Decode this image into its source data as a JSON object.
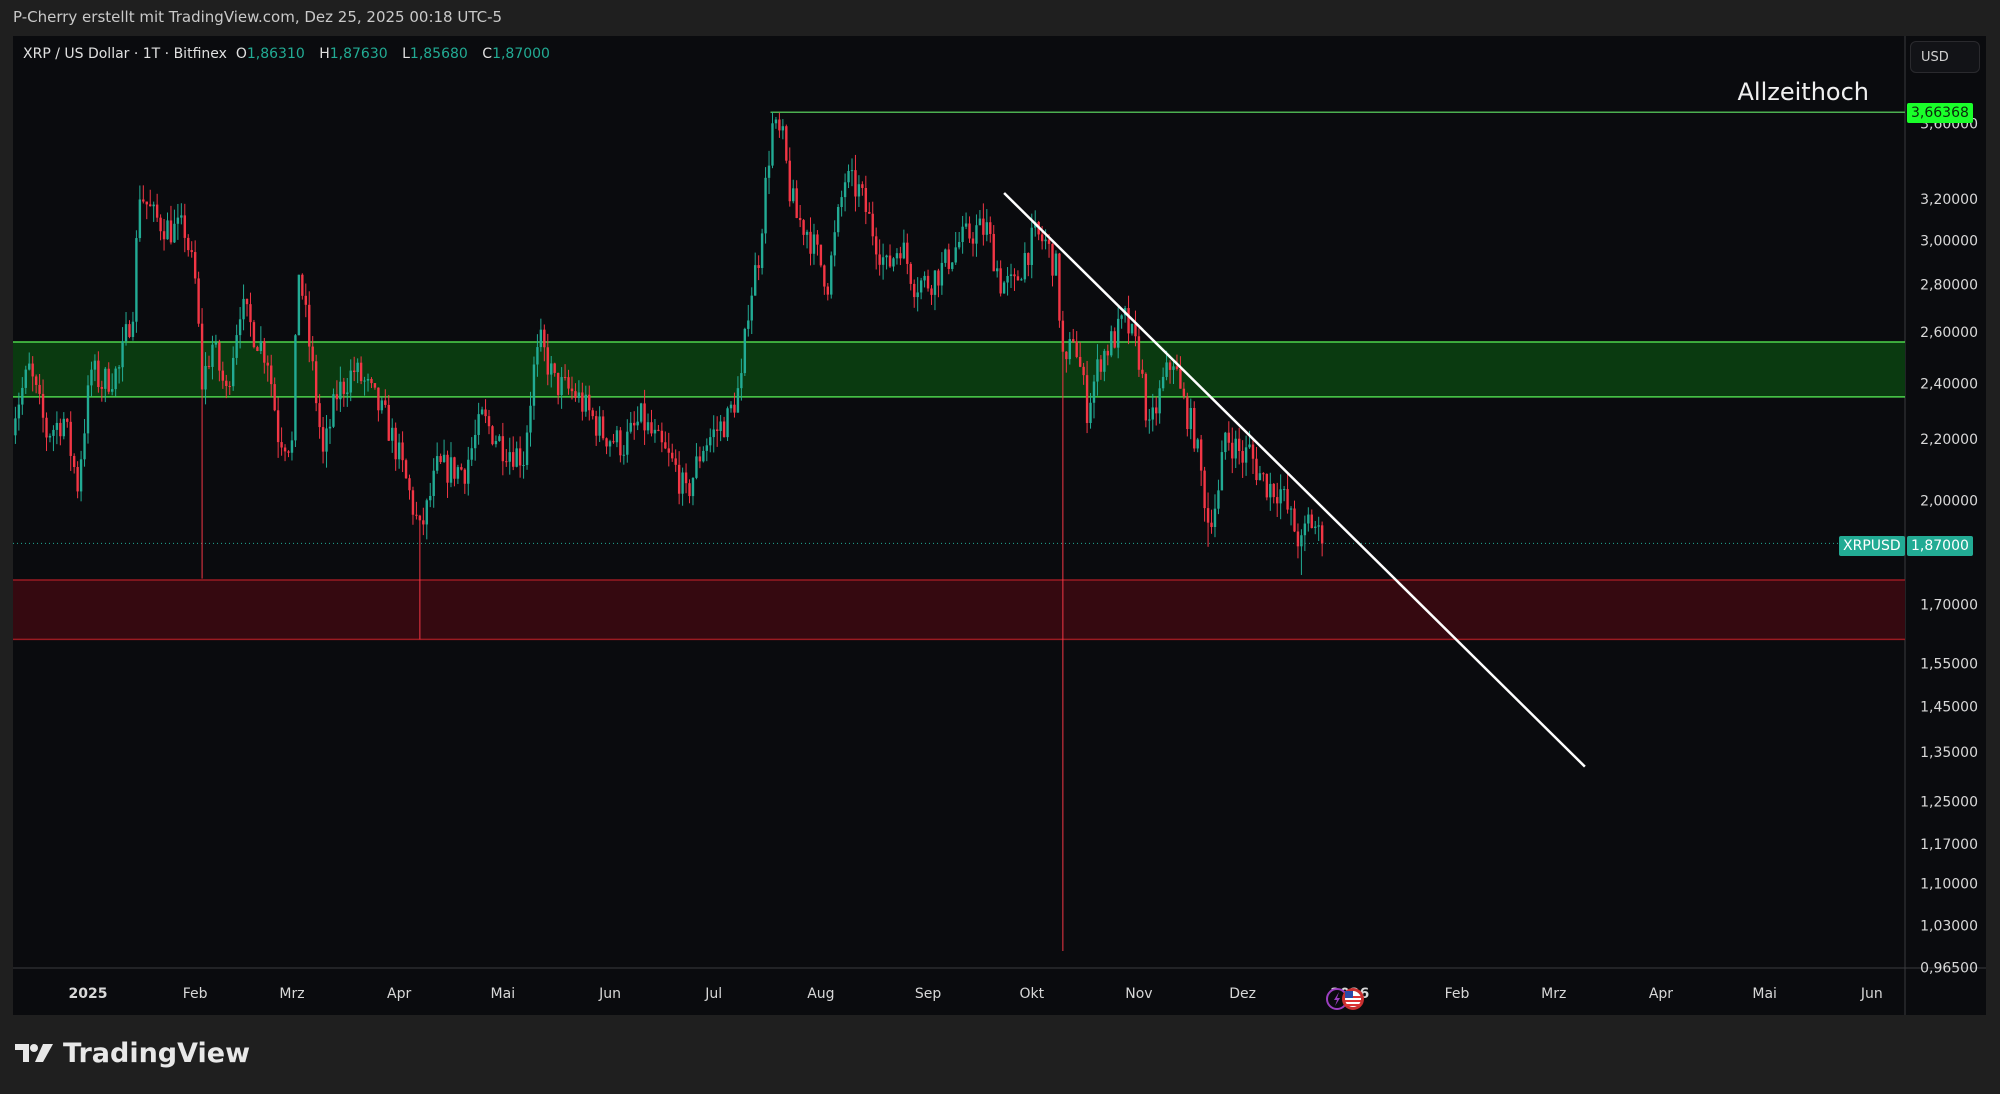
{
  "header": {
    "text": "P-Cherry erstellt mit TradingView.com, Dez 25, 2025 00:18 UTC-5"
  },
  "legend": {
    "symbol": "XRP / US Dollar · 1T · Bitfinex",
    "o_label": "O",
    "o": "1,86310",
    "h_label": "H",
    "h": "1,87630",
    "l_label": "L",
    "l": "1,85680",
    "c_label": "C",
    "c": "1,87000"
  },
  "currency_button": "USD",
  "annotations": {
    "ath_text": "Allzeithoch",
    "ath_price": "3,66368",
    "symbol_tag": "XRPUSD",
    "last_price": "1,87000"
  },
  "logo": {
    "text": "TradingView"
  },
  "icons": [
    "tradingview-logo-icon",
    "lightning-event-icon",
    "us-flag-event-icon"
  ],
  "colors": {
    "up": "#22ab94",
    "down": "#f23645",
    "support_zone": "#0a3a10",
    "support_border": "#4cd44c",
    "demand_zone": "#350910",
    "demand_border": "#9a1b22",
    "ath_line": "#4caf50",
    "trendline": "#ffffff",
    "background": "#0a0b0e"
  },
  "chart_data": {
    "type": "candlestick",
    "interval": "1T",
    "y_scale": "log",
    "ylim": [
      0.965,
      3.75
    ],
    "xlim": [
      "2024-12-10",
      "2026-06-15"
    ],
    "grid": false,
    "x_ticks": [
      {
        "date": "2025-01-01",
        "label": "2025",
        "bold": true
      },
      {
        "date": "2025-02-01",
        "label": "Feb"
      },
      {
        "date": "2025-03-01",
        "label": "Mrz"
      },
      {
        "date": "2025-04-01",
        "label": "Apr"
      },
      {
        "date": "2025-05-01",
        "label": "Mai"
      },
      {
        "date": "2025-06-01",
        "label": "Jun"
      },
      {
        "date": "2025-07-01",
        "label": "Jul"
      },
      {
        "date": "2025-08-01",
        "label": "Aug"
      },
      {
        "date": "2025-09-01",
        "label": "Sep"
      },
      {
        "date": "2025-10-01",
        "label": "Okt"
      },
      {
        "date": "2025-11-01",
        "label": "Nov"
      },
      {
        "date": "2025-12-01",
        "label": "Dez"
      },
      {
        "date": "2026-01-01",
        "label": "2026",
        "bold": true
      },
      {
        "date": "2026-02-01",
        "label": "Feb"
      },
      {
        "date": "2026-03-01",
        "label": "Mrz"
      },
      {
        "date": "2026-04-01",
        "label": "Apr"
      },
      {
        "date": "2026-05-01",
        "label": "Mai"
      },
      {
        "date": "2026-06-01",
        "label": "Jun"
      }
    ],
    "y_ticks": [
      "3,60000",
      "3,20000",
      "3,00000",
      "2,80000",
      "2,60000",
      "2,40000",
      "2,20000",
      "2,00000",
      "1,70000",
      "1,55000",
      "1,45000",
      "1,35000",
      "1,25000",
      "1,17000",
      "1,10000",
      "1,03000",
      "0,96500"
    ],
    "close_path": [
      [
        "2024-12-10",
        2.27
      ],
      [
        "2024-12-15",
        2.45
      ],
      [
        "2024-12-20",
        2.22
      ],
      [
        "2024-12-25",
        2.27
      ],
      [
        "2024-12-29",
        2.05
      ],
      [
        "2025-01-02",
        2.45
      ],
      [
        "2025-01-05",
        2.4
      ],
      [
        "2025-01-10",
        2.45
      ],
      [
        "2025-01-14",
        2.71
      ],
      [
        "2025-01-16",
        3.24
      ],
      [
        "2025-01-20",
        3.11
      ],
      [
        "2025-01-25",
        3.05
      ],
      [
        "2025-01-29",
        3.05
      ],
      [
        "2025-02-01",
        2.81
      ],
      [
        "2025-02-03",
        2.4
      ],
      [
        "2025-02-06",
        2.55
      ],
      [
        "2025-02-10",
        2.36
      ],
      [
        "2025-02-14",
        2.71
      ],
      [
        "2025-02-18",
        2.6
      ],
      [
        "2025-02-22",
        2.5
      ],
      [
        "2025-02-25",
        2.22
      ],
      [
        "2025-03-01",
        2.18
      ],
      [
        "2025-03-03",
        2.87
      ],
      [
        "2025-03-06",
        2.55
      ],
      [
        "2025-03-10",
        2.14
      ],
      [
        "2025-03-14",
        2.36
      ],
      [
        "2025-03-19",
        2.45
      ],
      [
        "2025-03-22",
        2.4
      ],
      [
        "2025-03-28",
        2.27
      ],
      [
        "2025-04-01",
        2.14
      ],
      [
        "2025-04-07",
        1.9
      ],
      [
        "2025-04-09",
        1.97
      ],
      [
        "2025-04-12",
        2.1
      ],
      [
        "2025-04-20",
        2.1
      ],
      [
        "2025-04-25",
        2.27
      ],
      [
        "2025-05-01",
        2.18
      ],
      [
        "2025-05-07",
        2.14
      ],
      [
        "2025-05-10",
        2.45
      ],
      [
        "2025-05-12",
        2.55
      ],
      [
        "2025-05-16",
        2.4
      ],
      [
        "2025-05-22",
        2.36
      ],
      [
        "2025-05-30",
        2.22
      ],
      [
        "2025-06-05",
        2.18
      ],
      [
        "2025-06-10",
        2.27
      ],
      [
        "2025-06-15",
        2.18
      ],
      [
        "2025-06-20",
        2.1
      ],
      [
        "2025-06-23",
        2.01
      ],
      [
        "2025-06-28",
        2.18
      ],
      [
        "2025-07-01",
        2.22
      ],
      [
        "2025-07-05",
        2.27
      ],
      [
        "2025-07-09",
        2.4
      ],
      [
        "2025-07-11",
        2.71
      ],
      [
        "2025-07-14",
        2.93
      ],
      [
        "2025-07-17",
        3.43
      ],
      [
        "2025-07-18",
        3.58
      ],
      [
        "2025-07-21",
        3.5
      ],
      [
        "2025-07-23",
        3.24
      ],
      [
        "2025-07-25",
        3.11
      ],
      [
        "2025-07-28",
        3.05
      ],
      [
        "2025-07-31",
        2.93
      ],
      [
        "2025-08-03",
        2.81
      ],
      [
        "2025-08-08",
        3.3
      ],
      [
        "2025-08-12",
        3.24
      ],
      [
        "2025-08-16",
        3.05
      ],
      [
        "2025-08-20",
        2.87
      ],
      [
        "2025-08-24",
        2.99
      ],
      [
        "2025-08-28",
        2.81
      ],
      [
        "2025-09-01",
        2.81
      ],
      [
        "2025-09-05",
        2.87
      ],
      [
        "2025-09-10",
        2.99
      ],
      [
        "2025-09-15",
        3.05
      ],
      [
        "2025-09-18",
        3.05
      ],
      [
        "2025-09-22",
        2.81
      ],
      [
        "2025-09-26",
        2.79
      ],
      [
        "2025-09-29",
        2.93
      ],
      [
        "2025-10-02",
        3.02
      ],
      [
        "2025-10-05",
        2.99
      ],
      [
        "2025-10-08",
        2.87
      ],
      [
        "2025-10-10",
        2.5
      ],
      [
        "2025-10-11",
        2.45
      ],
      [
        "2025-10-13",
        2.6
      ],
      [
        "2025-10-17",
        2.31
      ],
      [
        "2025-10-21",
        2.5
      ],
      [
        "2025-10-26",
        2.6
      ],
      [
        "2025-10-28",
        2.65
      ],
      [
        "2025-11-01",
        2.5
      ],
      [
        "2025-11-04",
        2.22
      ],
      [
        "2025-11-08",
        2.4
      ],
      [
        "2025-11-11",
        2.5
      ],
      [
        "2025-11-13",
        2.36
      ],
      [
        "2025-11-17",
        2.22
      ],
      [
        "2025-11-21",
        1.94
      ],
      [
        "2025-11-24",
        2.01
      ],
      [
        "2025-11-26",
        2.22
      ],
      [
        "2025-12-01",
        2.14
      ],
      [
        "2025-12-03",
        2.16
      ],
      [
        "2025-12-05",
        2.1
      ],
      [
        "2025-12-08",
        2.05
      ],
      [
        "2025-12-12",
        2.03
      ],
      [
        "2025-12-15",
        1.94
      ],
      [
        "2025-12-18",
        1.86
      ],
      [
        "2025-12-20",
        1.94
      ],
      [
        "2025-12-22",
        1.92
      ],
      [
        "2025-12-24",
        1.87
      ]
    ],
    "notable_wicks": [
      {
        "date": "2025-02-03",
        "low": 1.77
      },
      {
        "date": "2025-04-07",
        "low": 1.61
      },
      {
        "date": "2025-07-18",
        "high": 3.66368
      },
      {
        "date": "2025-10-10",
        "low": 0.99
      },
      {
        "date": "2025-11-21",
        "low": 1.86
      },
      {
        "date": "2025-12-18",
        "low": 1.78
      }
    ],
    "levels": {
      "all_time_high": {
        "price": 3.66368,
        "from": "2025-07-18",
        "label": "Allzeithoch"
      },
      "support_zone": {
        "top": 2.56,
        "bottom": 2.35
      },
      "demand_zone": {
        "top": 1.766,
        "bottom": 1.61
      },
      "last_price": 1.87
    },
    "trendline": {
      "from": [
        "2025-09-23",
        3.23
      ],
      "to": [
        "2026-03-10",
        1.32
      ]
    }
  }
}
